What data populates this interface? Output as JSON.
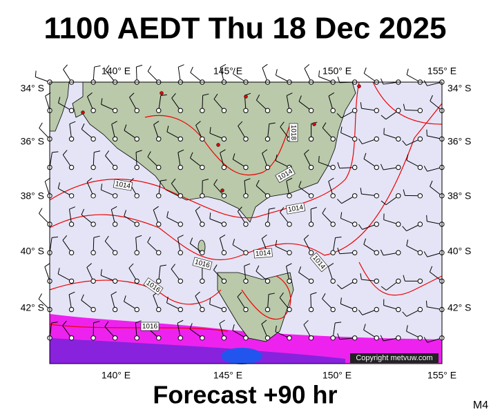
{
  "title": "1100 AEDT Thu 18 Dec 2025",
  "footer": "Forecast +90 hr",
  "model": "M4",
  "copyright": "Copyright metvuw.com",
  "lon_labels": [
    "140° E",
    "145° E",
    "150° E",
    "155° E"
  ],
  "lat_labels": [
    "34° S",
    "36° S",
    "38° S",
    "40° S",
    "42° S"
  ],
  "isobar_labels": [
    "1014",
    "1018",
    "1014",
    "1014",
    "1014",
    "1014",
    "1016",
    "1016",
    "1016"
  ]
}
